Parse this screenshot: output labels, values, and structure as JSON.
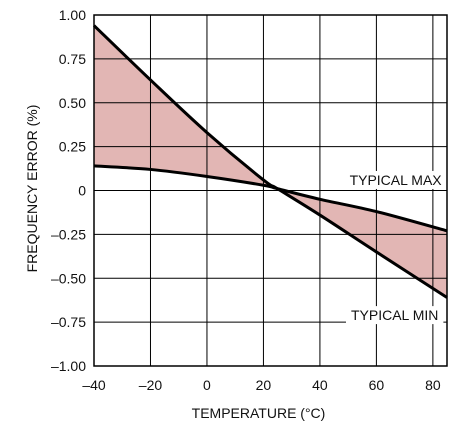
{
  "chart_data": {
    "type": "line",
    "xlabel": "TEMPERATURE (°C)",
    "ylabel": "FREQUENCY ERROR (%)",
    "xlim": [
      -40,
      85
    ],
    "ylim": [
      -1.0,
      1.0
    ],
    "x_ticks": [
      -40,
      -20,
      0,
      20,
      40,
      60,
      80
    ],
    "x_tick_labels": [
      "–40",
      "–20",
      "0",
      "20",
      "40",
      "60",
      "80"
    ],
    "y_ticks": [
      1.0,
      0.75,
      0.5,
      0.25,
      0,
      -0.25,
      -0.5,
      -0.75,
      -1.0
    ],
    "y_tick_labels": [
      "1.00",
      "0.75",
      "0.50",
      "0.25",
      "0",
      "–0.25",
      "–0.50",
      "–0.75",
      "–1.00"
    ],
    "x_grid": [
      -40,
      -20,
      0,
      20,
      40,
      60,
      80
    ],
    "grid": true,
    "series": [
      {
        "name": "TYPICAL MAX",
        "x": [
          -40,
          -20,
          0,
          20,
          25,
          40,
          60,
          85
        ],
        "y": [
          0.14,
          0.12,
          0.08,
          0.03,
          0.01,
          -0.05,
          -0.12,
          -0.23
        ]
      },
      {
        "name": "TYPICAL MIN",
        "x": [
          -40,
          -20,
          0,
          20,
          25,
          40,
          60,
          85
        ],
        "y": [
          0.94,
          0.63,
          0.33,
          0.06,
          0.01,
          -0.14,
          -0.35,
          -0.61
        ]
      }
    ],
    "fill_between": true,
    "colors": {
      "fill": "#e2b6b4",
      "line": "#000000",
      "grid": "#000000"
    },
    "annotations": [
      {
        "text": "TYPICAL MAX",
        "series": "TYPICAL MAX"
      },
      {
        "text": "TYPICAL MIN",
        "series": "TYPICAL MIN"
      }
    ]
  }
}
